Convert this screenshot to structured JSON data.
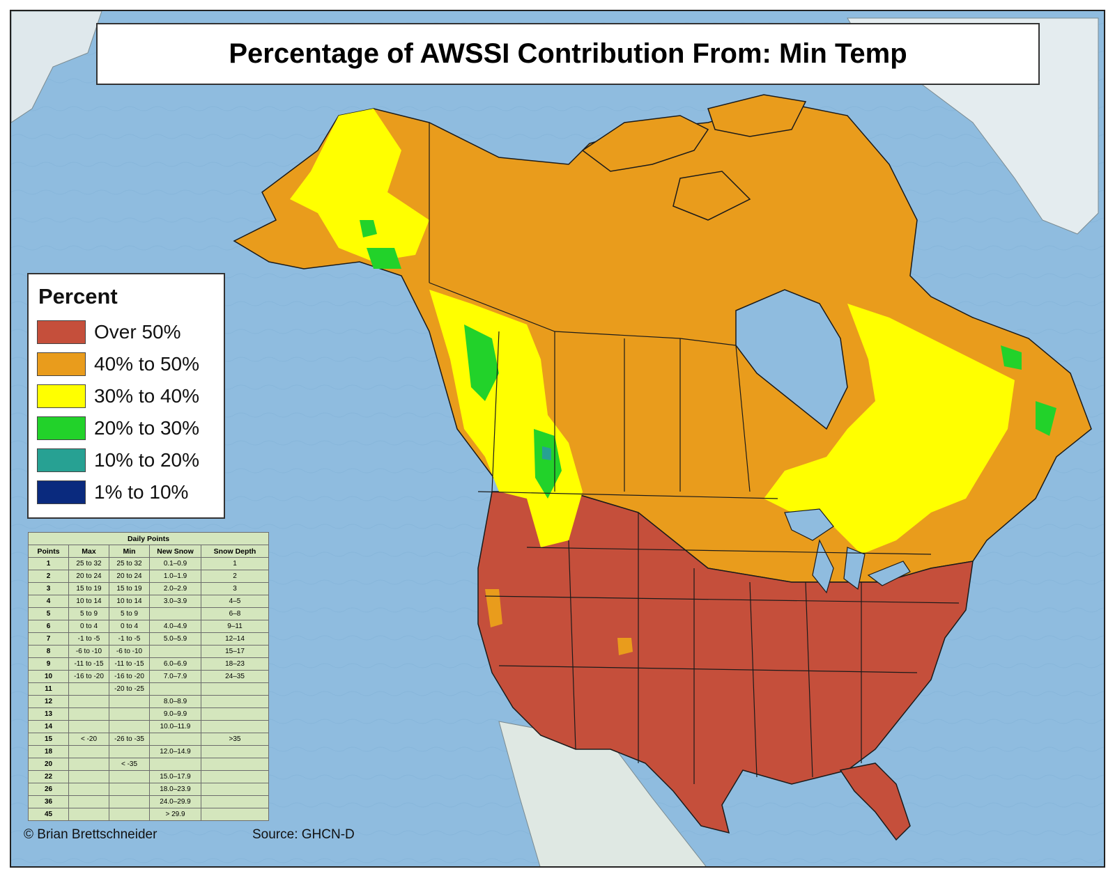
{
  "title": "Percentage of AWSSI Contribution From: Min Temp",
  "legend": {
    "title": "Percent",
    "items": [
      {
        "label": "Over 50%",
        "color": "#c54f3b"
      },
      {
        "label": "40% to 50%",
        "color": "#e99c1c"
      },
      {
        "label": "30% to 40%",
        "color": "#ffff00"
      },
      {
        "label": "20% to 30%",
        "color": "#22d22a"
      },
      {
        "label": "10% to 20%",
        "color": "#27a193"
      },
      {
        "label": "1% to 10%",
        "color": "#0a2a7e"
      }
    ]
  },
  "points_table": {
    "caption": "Daily Points",
    "headers": [
      "Points",
      "Max",
      "Min",
      "New Snow",
      "Snow Depth"
    ],
    "rows": [
      [
        "1",
        "25 to 32",
        "25 to 32",
        "0.1–0.9",
        "1"
      ],
      [
        "2",
        "20 to 24",
        "20 to 24",
        "1.0–1.9",
        "2"
      ],
      [
        "3",
        "15 to 19",
        "15 to 19",
        "2.0–2.9",
        "3"
      ],
      [
        "4",
        "10 to 14",
        "10 to 14",
        "3.0–3.9",
        "4–5"
      ],
      [
        "5",
        "5 to 9",
        "5 to 9",
        "",
        "6–8"
      ],
      [
        "6",
        "0 to 4",
        "0 to 4",
        "4.0–4.9",
        "9–11"
      ],
      [
        "7",
        "-1 to -5",
        "-1 to -5",
        "5.0–5.9",
        "12–14"
      ],
      [
        "8",
        "-6 to -10",
        "-6 to -10",
        "",
        "15–17"
      ],
      [
        "9",
        "-11 to -15",
        "-11 to -15",
        "6.0–6.9",
        "18–23"
      ],
      [
        "10",
        "-16 to -20",
        "-16 to -20",
        "7.0–7.9",
        "24–35"
      ],
      [
        "11",
        "",
        "-20 to -25",
        "",
        ""
      ],
      [
        "12",
        "",
        "",
        "8.0–8.9",
        ""
      ],
      [
        "13",
        "",
        "",
        "9.0–9.9",
        ""
      ],
      [
        "14",
        "",
        "",
        "10.0–11.9",
        ""
      ],
      [
        "15",
        "< -20",
        "-26 to -35",
        "",
        ">35"
      ],
      [
        "18",
        "",
        "",
        "12.0–14.9",
        ""
      ],
      [
        "20",
        "",
        "< -35",
        "",
        ""
      ],
      [
        "22",
        "",
        "",
        "15.0–17.9",
        ""
      ],
      [
        "26",
        "",
        "",
        "18.0–23.9",
        ""
      ],
      [
        "36",
        "",
        "",
        "24.0–29.9",
        ""
      ],
      [
        "45",
        "",
        "",
        "> 29.9",
        ""
      ]
    ]
  },
  "credit": "© Brian Brettschneider",
  "source": "Source: GHCN-D",
  "map_colors": {
    "ocean": "#8fbcdf",
    "land_other": "#e4ecef",
    "boundary": "#1a1a1a"
  }
}
